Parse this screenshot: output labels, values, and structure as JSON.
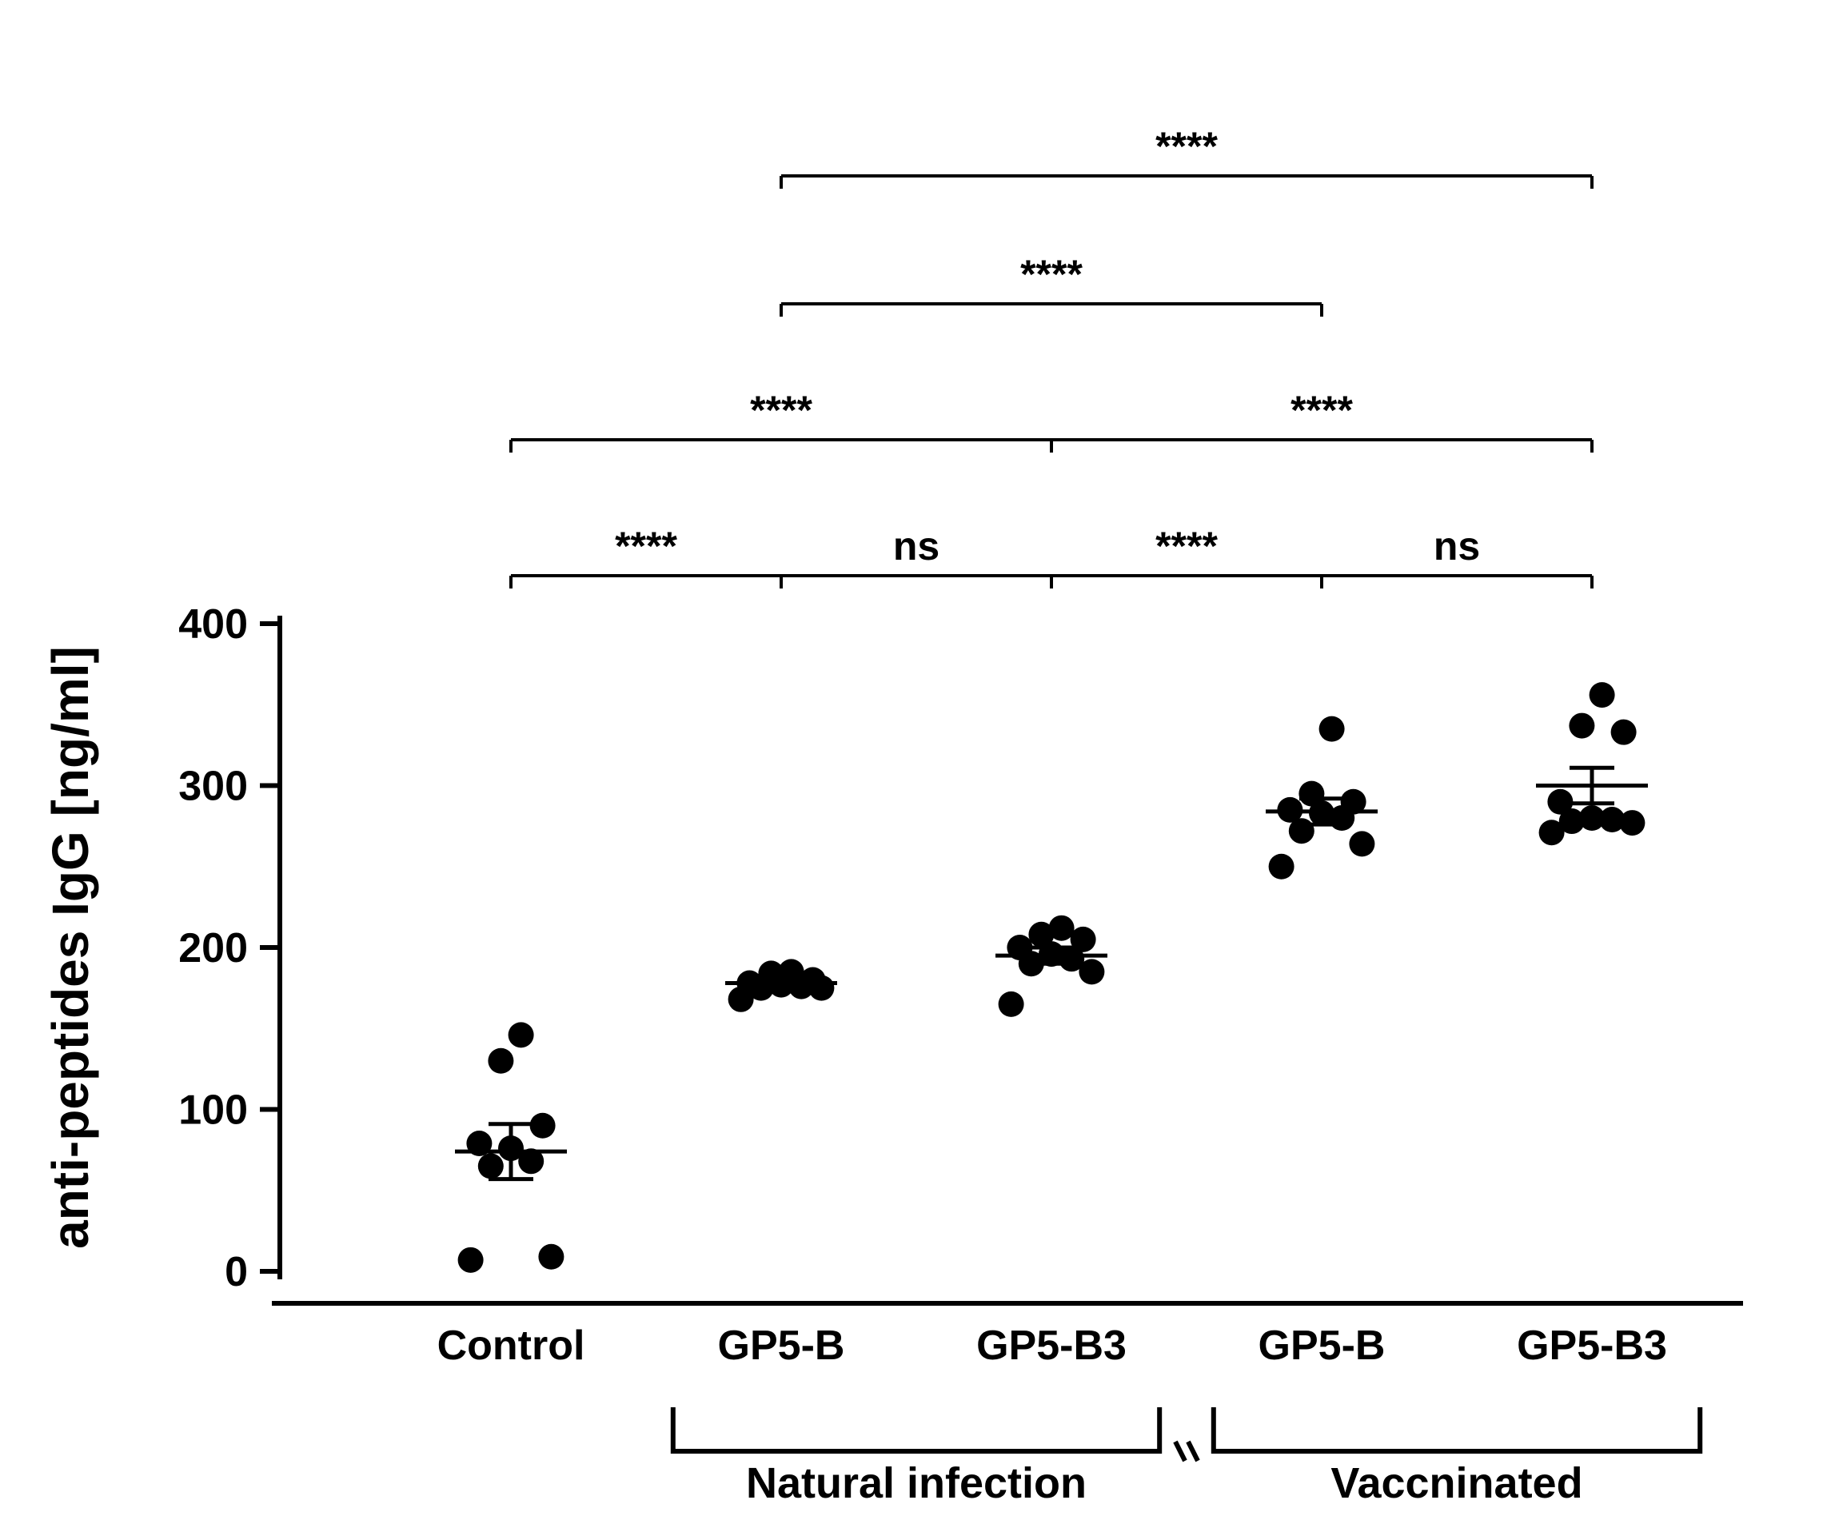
{
  "chart": {
    "type": "scatter-dotplot",
    "background_color": "#ffffff",
    "point_color": "#000000",
    "axis_color": "#000000",
    "ylabel": "anti-peptides IgG [ng/ml]",
    "ylabel_fontsize": 64,
    "ylim": [
      0,
      400
    ],
    "ytick_step": 100,
    "yticks": [
      0,
      100,
      200,
      300,
      400
    ],
    "tick_fontsize": 52,
    "axis_stroke_width": 6,
    "point_radius": 16,
    "groups": [
      {
        "key": "control",
        "label": "Control",
        "subgroup": null,
        "points": [
          7,
          9,
          65,
          68,
          76,
          79,
          90,
          130,
          146
        ],
        "mean": 74,
        "sem": 17
      },
      {
        "key": "ni_gp5b",
        "label": "GP5-B",
        "subgroup": "Natural infection",
        "points": [
          168,
          175,
          175,
          176,
          177,
          178,
          180,
          184,
          185
        ],
        "mean": 178,
        "sem": 3
      },
      {
        "key": "ni_gp5b3",
        "label": "GP5-B3",
        "subgroup": "Natural infection",
        "points": [
          165,
          185,
          190,
          193,
          196,
          200,
          205,
          208,
          212
        ],
        "mean": 195,
        "sem": 5
      },
      {
        "key": "v_gp5b",
        "label": "GP5-B",
        "subgroup": "Vaccninated",
        "points": [
          250,
          264,
          272,
          280,
          283,
          285,
          290,
          295,
          335
        ],
        "mean": 284,
        "sem": 8
      },
      {
        "key": "v_gp5b3",
        "label": "GP5-B3",
        "subgroup": "Vaccninated",
        "points": [
          271,
          277,
          278,
          279,
          280,
          290,
          333,
          337,
          356
        ],
        "mean": 300,
        "sem": 11
      }
    ],
    "subgroups": [
      {
        "label": "Natural infection",
        "span": [
          "ni_gp5b",
          "ni_gp5b3"
        ]
      },
      {
        "label": "Vaccninated",
        "span": [
          "v_gp5b",
          "v_gp5b3"
        ]
      }
    ],
    "significance": [
      {
        "from": "control",
        "to": "ni_gp5b",
        "label": "****",
        "tier": 0
      },
      {
        "from": "ni_gp5b",
        "to": "ni_gp5b3",
        "label": "ns",
        "tier": 0
      },
      {
        "from": "ni_gp5b3",
        "to": "v_gp5b",
        "label": "****",
        "tier": 0
      },
      {
        "from": "v_gp5b",
        "to": "v_gp5b3",
        "label": "ns",
        "tier": 0
      },
      {
        "from": "control",
        "to": "ni_gp5b3",
        "label": "****",
        "tier": 1
      },
      {
        "from": "ni_gp5b3",
        "to": "v_gp5b3",
        "label": "****",
        "tier": 1
      },
      {
        "from": "ni_gp5b",
        "to": "v_gp5b",
        "label": "****",
        "tier": 2
      },
      {
        "from": "ni_gp5b",
        "to": "v_gp5b3",
        "label": "****",
        "tier": 3
      }
    ],
    "sig_fontsize": 50,
    "group_label_fontsize": 54
  }
}
